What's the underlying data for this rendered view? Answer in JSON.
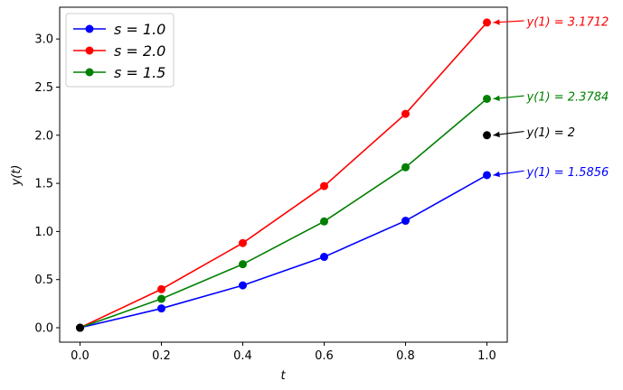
{
  "chart_data": {
    "type": "line",
    "xlabel": "t",
    "ylabel": "y(t)",
    "xlim": [
      -0.05,
      1.05
    ],
    "ylim": [
      -0.15,
      3.33
    ],
    "xticks": [
      0.0,
      0.2,
      0.4,
      0.6,
      0.8,
      1.0
    ],
    "xtick_labels": [
      "0.0",
      "0.2",
      "0.4",
      "0.6",
      "0.8",
      "1.0"
    ],
    "yticks": [
      0.0,
      0.5,
      1.0,
      1.5,
      2.0,
      2.5,
      3.0
    ],
    "ytick_labels": [
      "0.0",
      "0.5",
      "1.0",
      "1.5",
      "2.0",
      "2.5",
      "3.0"
    ],
    "x": [
      0.0,
      0.2,
      0.4,
      0.6,
      0.8,
      1.0
    ],
    "series": [
      {
        "name": "s = 1.0",
        "color": "#0000ff",
        "values": [
          0.0,
          0.2,
          0.44,
          0.736,
          1.1112,
          1.5856
        ]
      },
      {
        "name": "s = 2.0",
        "color": "#ff0000",
        "values": [
          0.0,
          0.4,
          0.88,
          1.472,
          2.2224,
          3.1712
        ]
      },
      {
        "name": "s = 1.5",
        "color": "#008000",
        "values": [
          0.0,
          0.3,
          0.66,
          1.104,
          1.6668,
          2.3784
        ]
      }
    ],
    "extra_points": [
      {
        "x": 0.0,
        "y": 0.0,
        "color": "#000000"
      },
      {
        "x": 1.0,
        "y": 2.0,
        "color": "#000000"
      }
    ],
    "legend": {
      "placement": "upper-left",
      "entries": [
        "s = 1.0",
        "s = 2.0",
        "s = 1.5"
      ]
    },
    "annotations": [
      {
        "text": "y(1) = 3.1712",
        "color": "#ff0000",
        "x": 1.0,
        "y": 3.1712,
        "text_y": 3.18
      },
      {
        "text": "y(1) = 2.3784",
        "color": "#008000",
        "x": 1.0,
        "y": 2.3784,
        "text_y": 2.4
      },
      {
        "text": "y(1) = 2",
        "color": "#000000",
        "x": 1.0,
        "y": 2.0,
        "text_y": 2.03
      },
      {
        "text": "y(1) = 1.5856",
        "color": "#0000ff",
        "x": 1.0,
        "y": 1.5856,
        "text_y": 1.62
      }
    ]
  }
}
